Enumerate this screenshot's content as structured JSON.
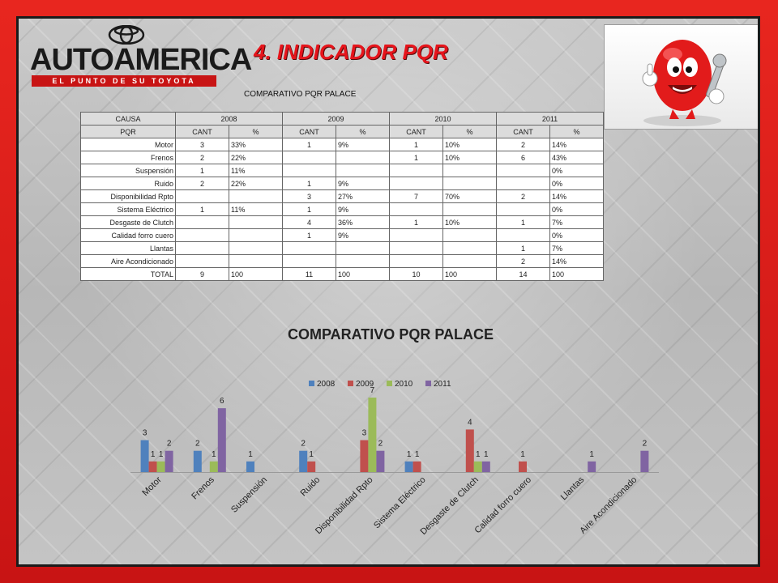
{
  "logo": {
    "brand": "AUTOAMERICA",
    "tagline": "EL PUNTO DE SU TOYOTA"
  },
  "slide_title": "4. INDICADOR PQR",
  "table": {
    "title": "COMPARATIVO PQR PALACE",
    "header_row1": [
      "CAUSA",
      "2008",
      "2009",
      "2010",
      "2011"
    ],
    "header_row2": [
      "PQR",
      "CANT",
      "%",
      "CANT",
      "%",
      "CANT",
      "%",
      "CANT",
      "%"
    ],
    "rows": [
      [
        "Motor",
        "3",
        "33%",
        "1",
        "9%",
        "1",
        "10%",
        "2",
        "14%"
      ],
      [
        "Frenos",
        "2",
        "22%",
        "",
        "",
        "1",
        "10%",
        "6",
        "43%"
      ],
      [
        "Suspensión",
        "1",
        "11%",
        "",
        "",
        "",
        "",
        "",
        "0%"
      ],
      [
        "Ruido",
        "2",
        "22%",
        "1",
        "9%",
        "",
        "",
        "",
        "0%"
      ],
      [
        "Disponibilidad Rpto",
        "",
        "",
        "3",
        "27%",
        "7",
        "70%",
        "2",
        "14%"
      ],
      [
        "Sistema Eléctrico",
        "1",
        "11%",
        "1",
        "9%",
        "",
        "",
        "",
        "0%"
      ],
      [
        "Desgaste de Clutch",
        "",
        "",
        "4",
        "36%",
        "1",
        "10%",
        "1",
        "7%"
      ],
      [
        "Calidad forro cuero",
        "",
        "",
        "1",
        "9%",
        "",
        "",
        "",
        "0%"
      ],
      [
        "Llantas",
        "",
        "",
        "",
        "",
        "",
        "",
        "1",
        "7%"
      ],
      [
        "Aire Acondicionado",
        "",
        "",
        "",
        "",
        "",
        "",
        "2",
        "14%"
      ],
      [
        "TOTAL",
        "9",
        "100",
        "11",
        "100",
        "10",
        "100",
        "14",
        "100"
      ]
    ]
  },
  "chart_data": {
    "type": "bar",
    "title": "COMPARATIVO PQR PALACE",
    "legend_position": "top",
    "categories": [
      "Motor",
      "Frenos",
      "Suspensión",
      "Ruido",
      "Disponibilidad Rpto",
      "Sistema Eléctrico",
      "Desgaste de Clutch",
      "Calidad forro cuero",
      "Llantas",
      "Aire Acondicionado"
    ],
    "series": [
      {
        "name": "2008",
        "color": "#4f81bd",
        "values": [
          3,
          2,
          1,
          2,
          null,
          1,
          null,
          null,
          null,
          null
        ]
      },
      {
        "name": "2009",
        "color": "#c0504d",
        "values": [
          1,
          null,
          null,
          1,
          3,
          1,
          4,
          1,
          null,
          null
        ]
      },
      {
        "name": "2010",
        "color": "#9bbb59",
        "values": [
          1,
          1,
          null,
          null,
          7,
          null,
          1,
          null,
          null,
          null
        ]
      },
      {
        "name": "2011",
        "color": "#8064a2",
        "values": [
          2,
          6,
          null,
          null,
          2,
          null,
          1,
          null,
          1,
          2
        ]
      }
    ],
    "ylim": [
      0,
      7
    ],
    "grid": false
  }
}
